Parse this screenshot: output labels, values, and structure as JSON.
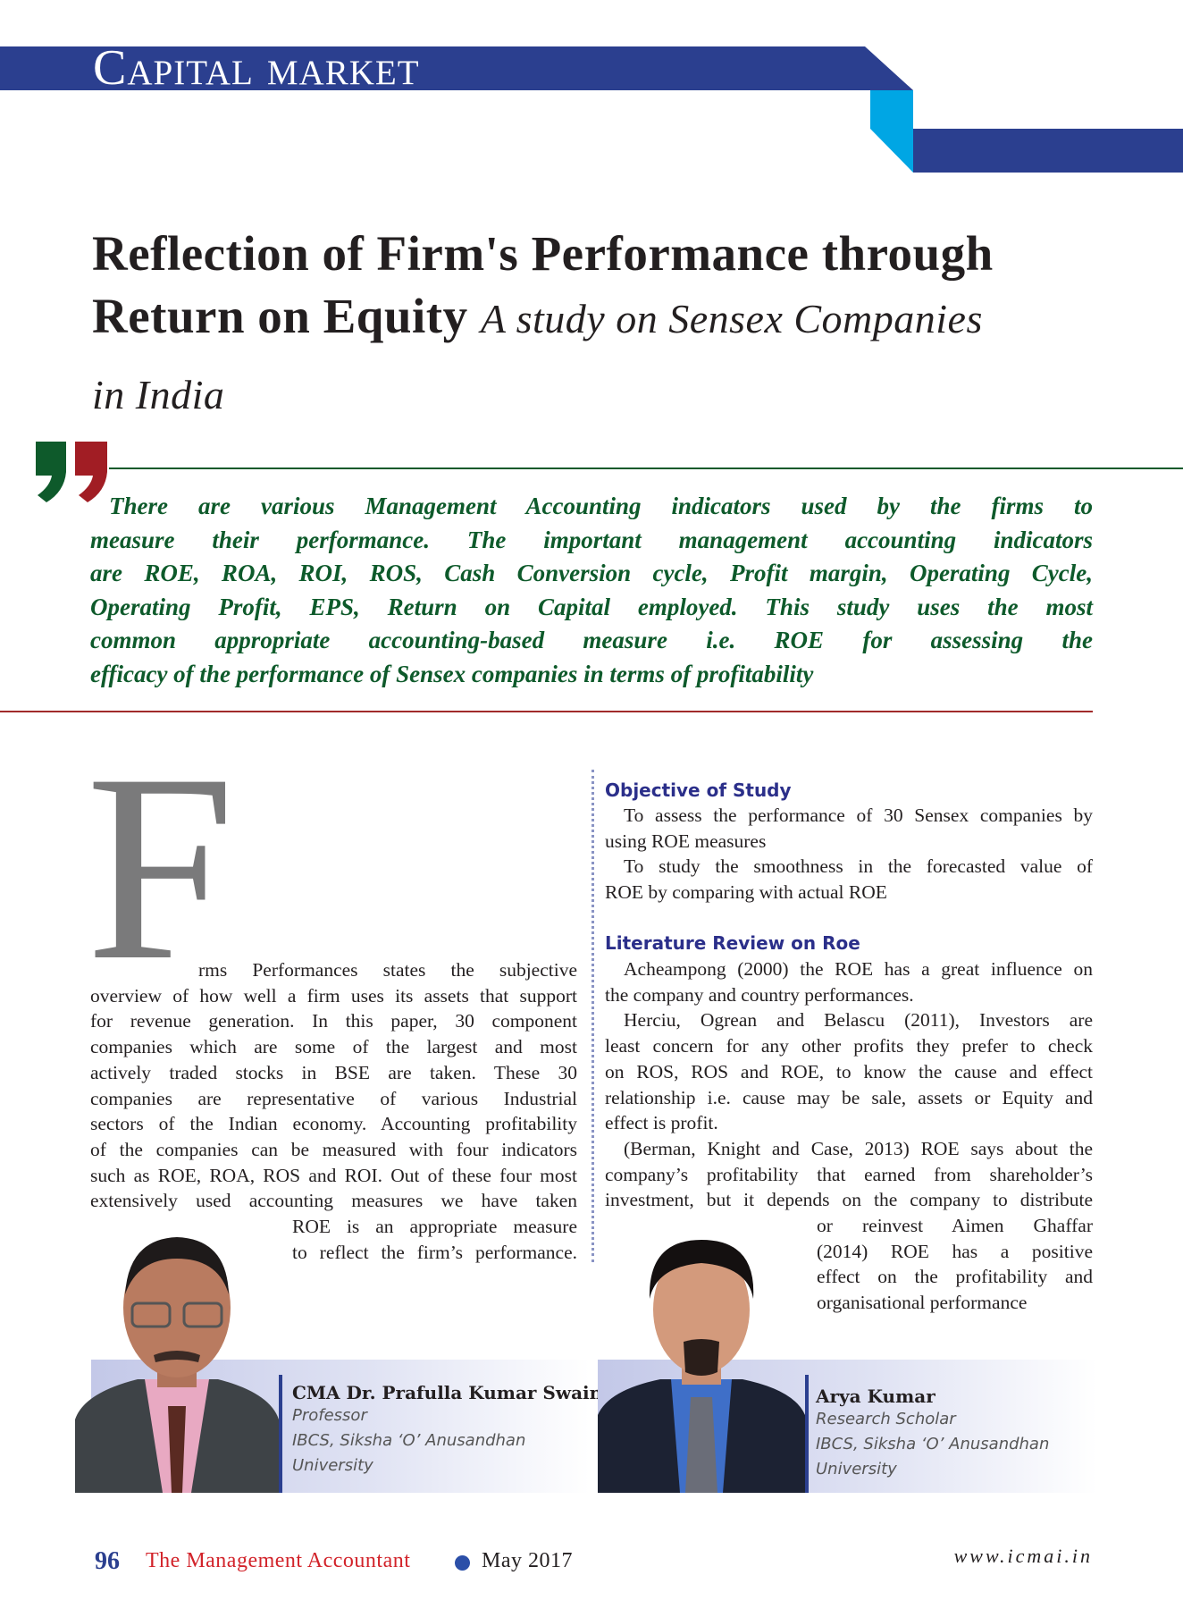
{
  "header": {
    "section": "Capital market",
    "colors": {
      "band": "#2b3f8f",
      "accent": "#00a6e4"
    }
  },
  "article": {
    "title_line1": "Reflection of Firm's Performance through",
    "title_line2": "Return on Equity",
    "subtitle_part1": "A study on Sensex Companies",
    "subtitle_part2": "in India",
    "pull_quote_lines": [
      "There are various Management Accounting indicators used by the firms to",
      "measure their performance. The important management accounting indicators",
      "are ROE, ROA, ROI, ROS, Cash Conversion cycle, Profit margin, Operating Cycle,",
      "Operating Profit, EPS, Return on Capital employed. This study uses the most",
      "common appropriate accounting-based measure i.e. ROE for assessing the",
      "efficacy of the performance of Sensex companies in terms of profitability"
    ],
    "drop_cap": "F",
    "intro_lines": [
      "rms Performances states the subjective",
      "overview of how well a firm uses its assets that support",
      "for revenue generation. In this paper, 30 component",
      "companies which are some of the largest and most",
      "actively traded stocks in BSE are taken. These 30",
      "companies are representative of various Industrial",
      "sectors of the Indian economy. Accounting profitability",
      "of the companies can be measured with four indicators",
      "such as ROE, ROA, ROS and ROI. Out of these four most",
      "extensively used accounting measures we have taken",
      "ROE is an appropriate measure",
      "to reflect the firm’s performance."
    ],
    "objective_heading": "Objective of Study",
    "objective_lines": [
      "To assess the performance of  30 Sensex companies by",
      "using ROE measures",
      "To study the smoothness in the forecasted value of",
      "ROE by comparing with actual ROE"
    ],
    "literature_heading": "Literature Review on Roe",
    "literature_lines": [
      "Acheampong (2000) the ROE has a great influence on",
      "the company and country performances.",
      "Herciu, Ogrean and Belascu (2011), Investors are",
      "least concern for any other profits they prefer to check",
      "on ROS, ROS and ROE, to know the cause and effect",
      "relationship i.e. cause may be sale, assets or Equity and",
      "effect is profit.",
      "(Berman, Knight and Case, 2013) ROE says about the",
      "company’s profitability that earned from shareholder’s",
      "investment, but it depends on the company to distribute",
      "or reinvest Aimen Ghaffar",
      "(2014) ROE has a positive",
      "effect on the profitability and",
      "organisational performance"
    ]
  },
  "authors": [
    {
      "name": "CMA Dr. Prafulla Kumar Swain",
      "role": "Professor",
      "affiliation_line1": "IBCS, Siksha ‘O’ Anusandhan",
      "affiliation_line2": "University"
    },
    {
      "name": "Arya Kumar",
      "role": "Research Scholar",
      "affiliation_line1": "IBCS, Siksha ‘O’ Anusandhan",
      "affiliation_line2": "University"
    }
  ],
  "footer": {
    "page": "96",
    "magazine": "The Management Accountant",
    "date": "May 2017",
    "url": "www.icmai.in"
  }
}
